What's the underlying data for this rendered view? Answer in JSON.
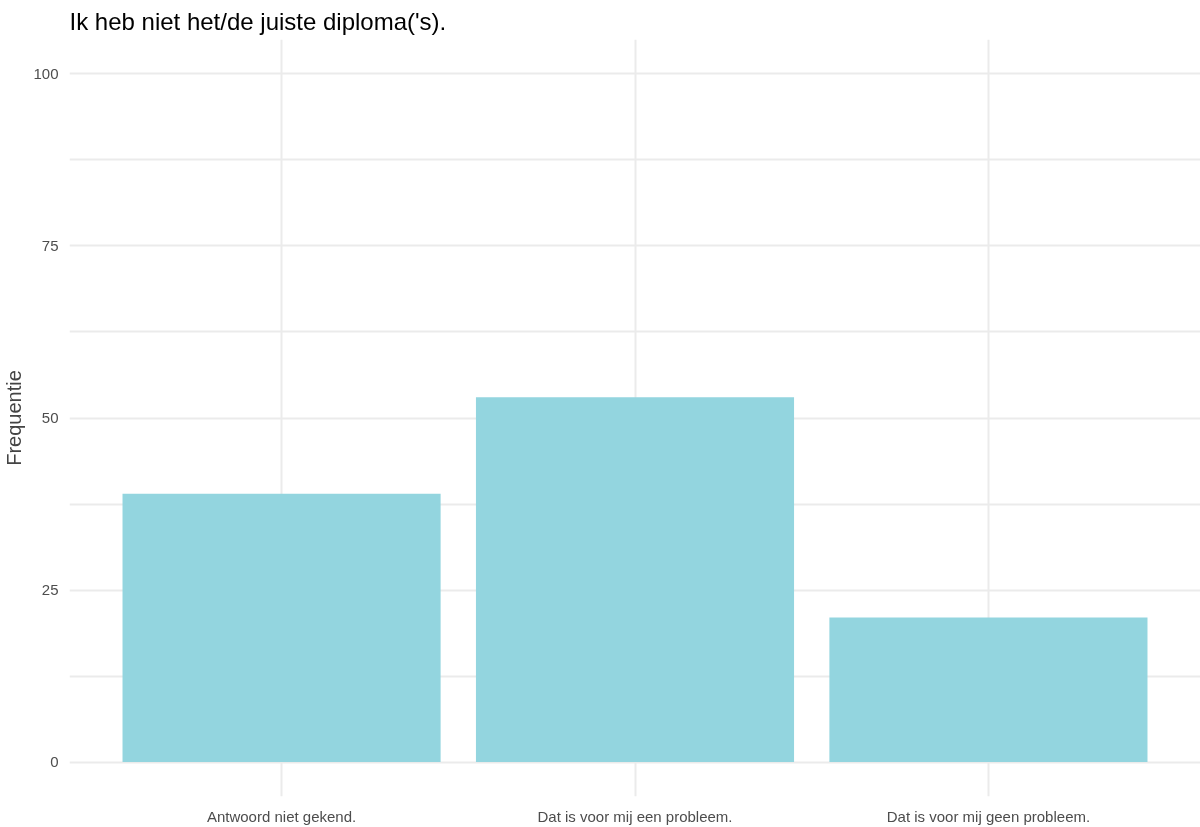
{
  "chart_data": {
    "type": "bar",
    "title": "Ik heb niet het/de juiste diploma('s).",
    "ylabel": "Frequentie",
    "categories": [
      "Antwoord niet gekend.",
      "Dat is voor mij een probleem.",
      "Dat is voor mij geen probleem."
    ],
    "values": [
      39,
      53,
      21
    ],
    "color": "#93d5df",
    "ylim": [
      -5,
      105
    ],
    "yticks": [
      0,
      {
        "value": 12.5,
        "label": null
      },
      25,
      {
        "value": 37.5,
        "label": null
      },
      50,
      {
        "value": 62.5,
        "label": null
      },
      75,
      {
        "value": 87.5,
        "label": null
      },
      100
    ],
    "grid": true
  }
}
